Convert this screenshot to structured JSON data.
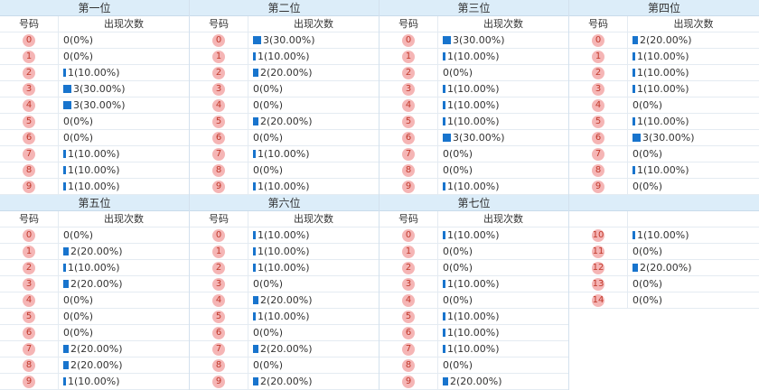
{
  "header": {
    "number_label": "号码",
    "count_label": "出现次数"
  },
  "panels": [
    {
      "title": "第一位",
      "rows": [
        {
          "num": "0",
          "text": "0(0%)",
          "pct": 0
        },
        {
          "num": "1",
          "text": "0(0%)",
          "pct": 0
        },
        {
          "num": "2",
          "text": "1(10.00%)",
          "pct": 10
        },
        {
          "num": "3",
          "text": "3(30.00%)",
          "pct": 30
        },
        {
          "num": "4",
          "text": "3(30.00%)",
          "pct": 30
        },
        {
          "num": "5",
          "text": "0(0%)",
          "pct": 0
        },
        {
          "num": "6",
          "text": "0(0%)",
          "pct": 0
        },
        {
          "num": "7",
          "text": "1(10.00%)",
          "pct": 10
        },
        {
          "num": "8",
          "text": "1(10.00%)",
          "pct": 10
        },
        {
          "num": "9",
          "text": "1(10.00%)",
          "pct": 10
        }
      ]
    },
    {
      "title": "第二位",
      "rows": [
        {
          "num": "0",
          "text": "3(30.00%)",
          "pct": 30
        },
        {
          "num": "1",
          "text": "1(10.00%)",
          "pct": 10
        },
        {
          "num": "2",
          "text": "2(20.00%)",
          "pct": 20
        },
        {
          "num": "3",
          "text": "0(0%)",
          "pct": 0
        },
        {
          "num": "4",
          "text": "0(0%)",
          "pct": 0
        },
        {
          "num": "5",
          "text": "2(20.00%)",
          "pct": 20
        },
        {
          "num": "6",
          "text": "0(0%)",
          "pct": 0
        },
        {
          "num": "7",
          "text": "1(10.00%)",
          "pct": 10
        },
        {
          "num": "8",
          "text": "0(0%)",
          "pct": 0
        },
        {
          "num": "9",
          "text": "1(10.00%)",
          "pct": 10
        }
      ]
    },
    {
      "title": "第三位",
      "rows": [
        {
          "num": "0",
          "text": "3(30.00%)",
          "pct": 30
        },
        {
          "num": "1",
          "text": "1(10.00%)",
          "pct": 10
        },
        {
          "num": "2",
          "text": "0(0%)",
          "pct": 0
        },
        {
          "num": "3",
          "text": "1(10.00%)",
          "pct": 10
        },
        {
          "num": "4",
          "text": "1(10.00%)",
          "pct": 10
        },
        {
          "num": "5",
          "text": "1(10.00%)",
          "pct": 10
        },
        {
          "num": "6",
          "text": "3(30.00%)",
          "pct": 30
        },
        {
          "num": "7",
          "text": "0(0%)",
          "pct": 0
        },
        {
          "num": "8",
          "text": "0(0%)",
          "pct": 0
        },
        {
          "num": "9",
          "text": "1(10.00%)",
          "pct": 10
        }
      ]
    },
    {
      "title": "第四位",
      "rows": [
        {
          "num": "0",
          "text": "2(20.00%)",
          "pct": 20
        },
        {
          "num": "1",
          "text": "1(10.00%)",
          "pct": 10
        },
        {
          "num": "2",
          "text": "1(10.00%)",
          "pct": 10
        },
        {
          "num": "3",
          "text": "1(10.00%)",
          "pct": 10
        },
        {
          "num": "4",
          "text": "0(0%)",
          "pct": 0
        },
        {
          "num": "5",
          "text": "1(10.00%)",
          "pct": 10
        },
        {
          "num": "6",
          "text": "3(30.00%)",
          "pct": 30
        },
        {
          "num": "7",
          "text": "0(0%)",
          "pct": 0
        },
        {
          "num": "8",
          "text": "1(10.00%)",
          "pct": 10
        },
        {
          "num": "9",
          "text": "0(0%)",
          "pct": 0
        }
      ]
    },
    {
      "title": "第五位",
      "rows": [
        {
          "num": "0",
          "text": "0(0%)",
          "pct": 0
        },
        {
          "num": "1",
          "text": "2(20.00%)",
          "pct": 20
        },
        {
          "num": "2",
          "text": "1(10.00%)",
          "pct": 10
        },
        {
          "num": "3",
          "text": "2(20.00%)",
          "pct": 20
        },
        {
          "num": "4",
          "text": "0(0%)",
          "pct": 0
        },
        {
          "num": "5",
          "text": "0(0%)",
          "pct": 0
        },
        {
          "num": "6",
          "text": "0(0%)",
          "pct": 0
        },
        {
          "num": "7",
          "text": "2(20.00%)",
          "pct": 20
        },
        {
          "num": "8",
          "text": "2(20.00%)",
          "pct": 20
        },
        {
          "num": "9",
          "text": "1(10.00%)",
          "pct": 10
        }
      ]
    },
    {
      "title": "第六位",
      "rows": [
        {
          "num": "0",
          "text": "1(10.00%)",
          "pct": 10
        },
        {
          "num": "1",
          "text": "1(10.00%)",
          "pct": 10
        },
        {
          "num": "2",
          "text": "1(10.00%)",
          "pct": 10
        },
        {
          "num": "3",
          "text": "0(0%)",
          "pct": 0
        },
        {
          "num": "4",
          "text": "2(20.00%)",
          "pct": 20
        },
        {
          "num": "5",
          "text": "1(10.00%)",
          "pct": 10
        },
        {
          "num": "6",
          "text": "0(0%)",
          "pct": 0
        },
        {
          "num": "7",
          "text": "2(20.00%)",
          "pct": 20
        },
        {
          "num": "8",
          "text": "0(0%)",
          "pct": 0
        },
        {
          "num": "9",
          "text": "2(20.00%)",
          "pct": 20
        }
      ]
    },
    {
      "title": "第七位",
      "rows": [
        {
          "num": "0",
          "text": "1(10.00%)",
          "pct": 10
        },
        {
          "num": "1",
          "text": "0(0%)",
          "pct": 0
        },
        {
          "num": "2",
          "text": "0(0%)",
          "pct": 0
        },
        {
          "num": "3",
          "text": "1(10.00%)",
          "pct": 10
        },
        {
          "num": "4",
          "text": "0(0%)",
          "pct": 0
        },
        {
          "num": "5",
          "text": "1(10.00%)",
          "pct": 10
        },
        {
          "num": "6",
          "text": "1(10.00%)",
          "pct": 10
        },
        {
          "num": "7",
          "text": "1(10.00%)",
          "pct": 10
        },
        {
          "num": "8",
          "text": "0(0%)",
          "pct": 0
        },
        {
          "num": "9",
          "text": "2(20.00%)",
          "pct": 20
        }
      ]
    },
    {
      "title": "",
      "hide_header": true,
      "rows": [
        {
          "num": "10",
          "text": "1(10.00%)",
          "pct": 10
        },
        {
          "num": "11",
          "text": "0(0%)",
          "pct": 0
        },
        {
          "num": "12",
          "text": "2(20.00%)",
          "pct": 20
        },
        {
          "num": "13",
          "text": "0(0%)",
          "pct": 0
        },
        {
          "num": "14",
          "text": "0(0%)",
          "pct": 0
        }
      ]
    }
  ],
  "colors": {
    "header_bg": "#dcedf9",
    "ball_bg": "#f5b5b5",
    "ball_text": "#c0392b",
    "bar": "#1874cd"
  }
}
